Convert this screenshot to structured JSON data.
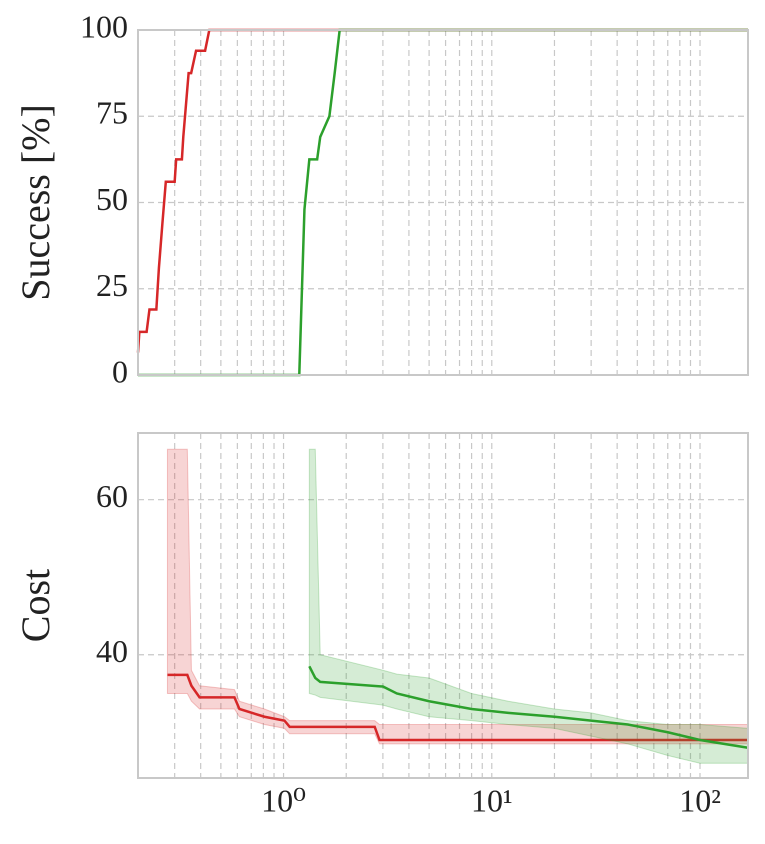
{
  "chart_data": [
    {
      "type": "line",
      "ylabel": "Success [%]",
      "log_x": true,
      "grid": true,
      "xlim": [
        0.2,
        170
      ],
      "ylim": [
        0,
        100
      ],
      "yticks": [
        0,
        25,
        50,
        75,
        100
      ],
      "xticks": [
        1,
        10,
        100
      ],
      "xminorticks": [
        0.2,
        0.3,
        0.4,
        0.5,
        0.6,
        0.7,
        0.8,
        0.9,
        2,
        3,
        4,
        5,
        6,
        7,
        8,
        9,
        20,
        30,
        40,
        50,
        60,
        70,
        80,
        90
      ],
      "series": [
        {
          "color": "#d62728",
          "x": [
            0.2,
            0.203,
            0.22,
            0.227,
            0.245,
            0.252,
            0.262,
            0.272,
            0.3,
            0.305,
            0.325,
            0.33,
            0.35,
            0.36,
            0.38,
            0.39,
            0.42,
            0.44,
            170
          ],
          "values": [
            6.5,
            12.5,
            12.5,
            19,
            19,
            31,
            44,
            56,
            56,
            62.5,
            62.5,
            69,
            87.5,
            87.5,
            94,
            94,
            94,
            100,
            100
          ]
        },
        {
          "color": "#2ca02c",
          "x": [
            0.2,
            1.19,
            1.26,
            1.33,
            1.45,
            1.5,
            1.66,
            1.76,
            1.86,
            170
          ],
          "values": [
            0,
            0,
            48,
            62.5,
            62.5,
            69,
            75,
            87.5,
            100,
            100
          ]
        }
      ]
    },
    {
      "type": "band-line",
      "ylabel": "Cost",
      "log_x": true,
      "grid": true,
      "xlim": [
        0.2,
        170
      ],
      "ylim": [
        24.1,
        68.6
      ],
      "yticks": [
        40,
        60
      ],
      "xticks": [
        {
          "value": 1,
          "label": "10⁰"
        },
        {
          "value": 10,
          "label": "10¹"
        },
        {
          "value": 100,
          "label": "10²"
        }
      ],
      "xminorticks": [
        0.2,
        0.3,
        0.4,
        0.5,
        0.6,
        0.7,
        0.8,
        0.9,
        2,
        3,
        4,
        5,
        6,
        7,
        8,
        9,
        20,
        30,
        40,
        50,
        60,
        70,
        80,
        90
      ],
      "series": [
        {
          "color": "#d62728",
          "x": [
            0.277,
            0.345,
            0.361,
            0.395,
            0.581,
            0.614,
            0.81,
            1.01,
            1.07,
            2.74,
            2.89,
            170
          ],
          "values": [
            37.4,
            37.4,
            36,
            34.5,
            34.5,
            33,
            32,
            31.5,
            30.7,
            30.7,
            29,
            29
          ],
          "upper": [
            66.5,
            66.5,
            38,
            36,
            35.5,
            34,
            33,
            32,
            31.5,
            31.5,
            31,
            31
          ],
          "lower": [
            35,
            35,
            34,
            33,
            33,
            32,
            31,
            30.5,
            29.8,
            29.8,
            28.5,
            28.5
          ]
        },
        {
          "color": "#2ca02c",
          "x": [
            1.33,
            1.42,
            1.5,
            3,
            3.5,
            5,
            8,
            12,
            20,
            30,
            45,
            70,
            100,
            170
          ],
          "values": [
            38.5,
            37,
            36.5,
            35.9,
            35,
            34,
            33,
            32.5,
            32,
            31.5,
            31,
            30,
            29,
            28
          ],
          "upper": [
            66.5,
            66.5,
            40,
            38,
            37.5,
            37,
            35,
            34,
            33,
            32.5,
            31.5,
            31,
            31,
            30.5
          ],
          "lower": [
            35,
            34.8,
            34.5,
            33.5,
            33,
            32,
            31.5,
            31,
            30.5,
            29.5,
            28.5,
            27,
            26,
            26
          ]
        }
      ]
    }
  ]
}
